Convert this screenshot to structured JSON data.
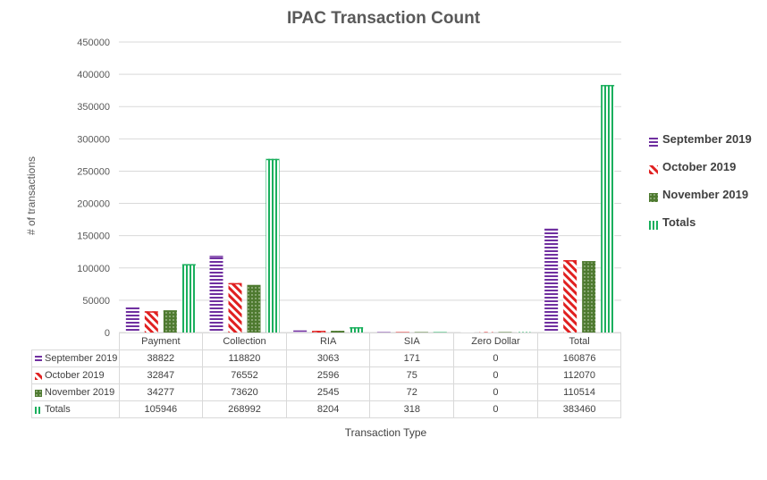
{
  "chart_data": {
    "type": "bar",
    "title": "IPAC Transaction Count",
    "xlabel": "Transaction Type",
    "ylabel": "# of transactions",
    "ylim": [
      0,
      450000
    ],
    "yticks": [
      0,
      50000,
      100000,
      150000,
      200000,
      250000,
      300000,
      350000,
      400000,
      450000
    ],
    "categories": [
      "Payment",
      "Collection",
      "RIA",
      "SIA",
      "Zero Dollar",
      "Total"
    ],
    "series": [
      {
        "name": "September 2019",
        "values": [
          38822,
          118820,
          3063,
          171,
          0,
          160876
        ],
        "color": "#7030a0",
        "pattern": "horizontal-stripes"
      },
      {
        "name": "October 2019",
        "values": [
          32847,
          76552,
          2596,
          75,
          0,
          112070
        ],
        "color": "#e02020",
        "pattern": "diagonal-stripes"
      },
      {
        "name": "November 2019",
        "values": [
          34277,
          73620,
          2545,
          72,
          0,
          110514
        ],
        "color": "#4e7a30",
        "pattern": "dots"
      },
      {
        "name": "Totals",
        "values": [
          105946,
          268992,
          8204,
          318,
          0,
          383460
        ],
        "color": "#1aaf5d",
        "pattern": "vertical-stripes"
      }
    ],
    "grid": true,
    "legend_position": "right",
    "data_table": true
  }
}
